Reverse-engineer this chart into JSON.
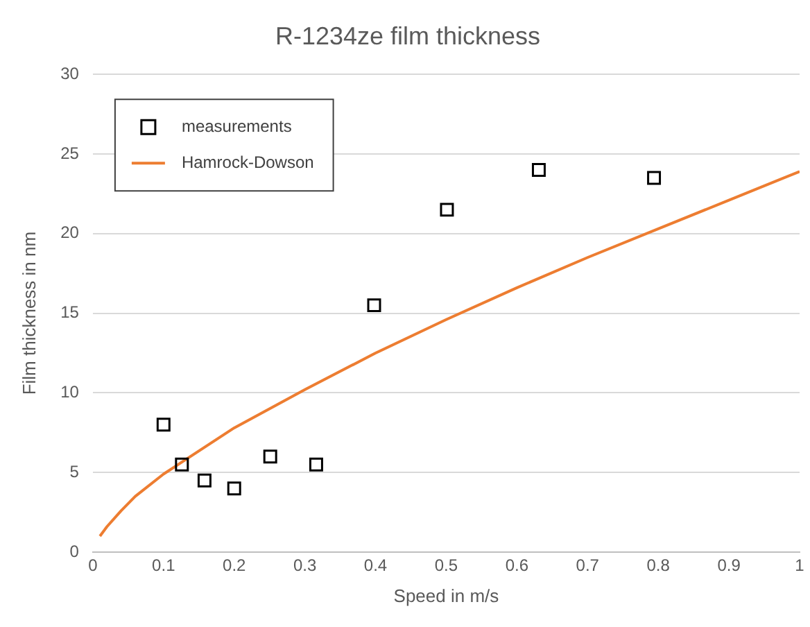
{
  "chart_data": {
    "type": "scatter",
    "title": "R-1234ze film thickness",
    "xlabel": "Speed in m/s",
    "ylabel": "Film thickness in nm",
    "xlim": [
      0,
      1
    ],
    "xticks": [
      0,
      0.1,
      0.2,
      0.3,
      0.4,
      0.5,
      0.6,
      0.7,
      0.8,
      0.9,
      1
    ],
    "ylim": [
      0,
      30
    ],
    "yticks": [
      0,
      5,
      10,
      15,
      20,
      25,
      30
    ],
    "grid": "y",
    "legend": "top left",
    "series": [
      {
        "name": "measurements",
        "type": "scatter",
        "marker": "square",
        "color": "#000000",
        "x": [
          0.1,
          0.126,
          0.158,
          0.2,
          0.251,
          0.316,
          0.398,
          0.501,
          0.631,
          0.794
        ],
        "values": [
          8,
          5.5,
          4.5,
          4,
          6,
          5.5,
          15.5,
          21.5,
          24,
          23.5
        ]
      },
      {
        "name": "Hamrock-Dowson",
        "type": "line",
        "marker": "none",
        "color": "#ed7d31",
        "x": [
          0.01,
          0.02,
          0.04,
          0.06,
          0.1,
          0.2,
          0.3,
          0.4,
          0.5,
          0.6,
          0.7,
          0.8,
          0.9,
          1
        ],
        "values": [
          1,
          1.6,
          2.6,
          3.5,
          4.9,
          7.8,
          10.2,
          12.5,
          14.6,
          16.6,
          18.5,
          20.3,
          22.1,
          23.9
        ]
      }
    ]
  }
}
